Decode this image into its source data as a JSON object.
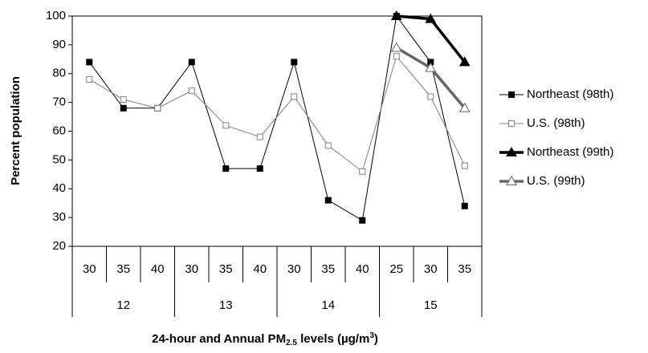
{
  "chart_data": {
    "type": "line",
    "y_label": "Percent population",
    "x_label": {
      "text": "24-hour and Annual PM",
      "sub": "2.5",
      "mid": " levels (µg/m",
      "sup": "3",
      "end": ")"
    },
    "categories": [
      "30",
      "35",
      "40",
      "30",
      "35",
      "40",
      "30",
      "35",
      "40",
      "25",
      "30",
      "35"
    ],
    "groups": [
      "12",
      "13",
      "14",
      "15"
    ],
    "ylim": [
      20,
      100
    ],
    "yticks": [
      20,
      30,
      40,
      50,
      60,
      70,
      80,
      90,
      100
    ],
    "series": [
      {
        "name": "Northeast (98th)",
        "color": "#000000",
        "marker": "square-filled",
        "values": [
          84,
          68,
          68,
          84,
          47,
          47,
          84,
          36,
          29,
          100,
          84,
          34
        ]
      },
      {
        "name": "U.S. (98th)",
        "color": "#808080",
        "marker": "square-open",
        "values": [
          78,
          71,
          68,
          74,
          62,
          58,
          72,
          55,
          46,
          86,
          72,
          48
        ]
      },
      {
        "name": "Northeast (99th)",
        "color": "#000000",
        "marker": "triangle-filled",
        "values": [
          null,
          null,
          null,
          null,
          null,
          null,
          null,
          null,
          null,
          100,
          99,
          84
        ]
      },
      {
        "name": "U.S. (99th)",
        "color": "#666666",
        "marker": "triangle-open",
        "values": [
          null,
          null,
          null,
          null,
          null,
          null,
          null,
          null,
          null,
          89,
          82,
          68
        ]
      }
    ]
  }
}
